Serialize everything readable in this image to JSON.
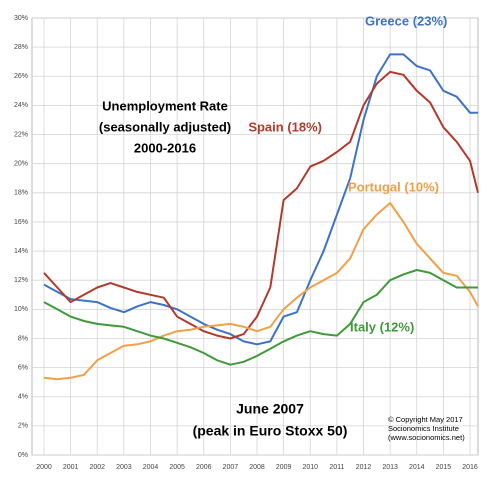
{
  "chart_data": {
    "type": "line",
    "title": [
      "Unemployment Rate",
      "(seasonally adjusted)",
      "2000-2016"
    ],
    "x": [
      2000,
      2000.5,
      2001,
      2001.5,
      2002,
      2002.5,
      2003,
      2003.5,
      2004,
      2004.5,
      2005,
      2005.5,
      2006,
      2006.5,
      2007,
      2007.5,
      2008,
      2008.5,
      2009,
      2009.5,
      2010,
      2010.5,
      2011,
      2011.5,
      2012,
      2012.5,
      2013,
      2013.5,
      2014,
      2014.5,
      2015,
      2015.5,
      2016,
      2016.3
    ],
    "series": [
      {
        "name": "Greece (23%)",
        "color": "#3d73c4",
        "values": [
          11.7,
          11.2,
          10.7,
          10.6,
          10.5,
          10.1,
          9.8,
          10.2,
          10.5,
          10.3,
          10,
          9.5,
          9,
          8.6,
          8.3,
          7.8,
          7.6,
          7.8,
          9.5,
          9.8,
          12,
          14,
          16.5,
          19,
          23,
          26,
          27.5,
          27.5,
          26.7,
          26.4,
          25,
          24.6,
          23.5,
          23.5
        ]
      },
      {
        "name": "Spain (18%)",
        "color": "#b23a2c",
        "values": [
          12.5,
          11.5,
          10.5,
          11,
          11.5,
          11.8,
          11.5,
          11.2,
          11,
          10.8,
          9.5,
          9,
          8.5,
          8.2,
          8,
          8.3,
          9.5,
          11.5,
          17.5,
          18.3,
          19.8,
          20.2,
          20.8,
          21.5,
          24,
          25.5,
          26.3,
          26.1,
          25,
          24.2,
          22.5,
          21.5,
          20.2,
          18
        ]
      },
      {
        "name": "Portugal (10%)",
        "color": "#f0a048",
        "values": [
          5.3,
          5.2,
          5.3,
          5.5,
          6.5,
          7,
          7.5,
          7.6,
          7.8,
          8.2,
          8.5,
          8.6,
          8.8,
          8.9,
          9,
          8.8,
          8.5,
          8.8,
          10,
          10.8,
          11.5,
          12,
          12.5,
          13.5,
          15.5,
          16.5,
          17.3,
          16,
          14.5,
          13.5,
          12.5,
          12.3,
          11.2,
          10.2
        ]
      },
      {
        "name": "Italy (12%)",
        "color": "#3f9a3a",
        "values": [
          10.5,
          10,
          9.5,
          9.2,
          9,
          8.9,
          8.8,
          8.5,
          8.2,
          8,
          7.7,
          7.4,
          7,
          6.5,
          6.2,
          6.4,
          6.8,
          7.3,
          7.8,
          8.2,
          8.5,
          8.3,
          8.2,
          9,
          10.5,
          11,
          12,
          12.4,
          12.7,
          12.5,
          12,
          11.5,
          11.5,
          11.5
        ]
      }
    ],
    "xlim": [
      1999.55,
      2016.3
    ],
    "xticks": [
      2000,
      2001,
      2002,
      2003,
      2004,
      2005,
      2006,
      2007,
      2008,
      2009,
      2010,
      2011,
      2012,
      2013,
      2014,
      2015,
      2016
    ],
    "ylim": [
      0,
      30
    ],
    "yticks": [
      {
        "value": 0,
        "label": "0%"
      },
      {
        "value": 2,
        "label": "2%"
      },
      {
        "value": 4,
        "label": "4%"
      },
      {
        "value": 6,
        "label": "6%"
      },
      {
        "value": 8,
        "label": "8%"
      },
      {
        "value": 10,
        "label": "10%"
      },
      {
        "value": 12,
        "label": "12%"
      },
      {
        "value": 14,
        "label": "14%"
      },
      {
        "value": 16,
        "label": "16%"
      },
      {
        "value": 18,
        "label": "18%"
      },
      {
        "value": 20,
        "label": "20%"
      },
      {
        "value": 22,
        "label": "22%"
      },
      {
        "value": 24,
        "label": "24%"
      },
      {
        "value": 26,
        "label": "26%"
      },
      {
        "value": 28,
        "label": "28%"
      },
      {
        "value": 30,
        "label": "30%"
      }
    ],
    "grid": true,
    "annotations": [
      "June 2007",
      "(peak in Euro Stoxx 50)",
      "© Copyright May 2017",
      "Socionomics Institute",
      "(www.socionomics.net)"
    ]
  }
}
